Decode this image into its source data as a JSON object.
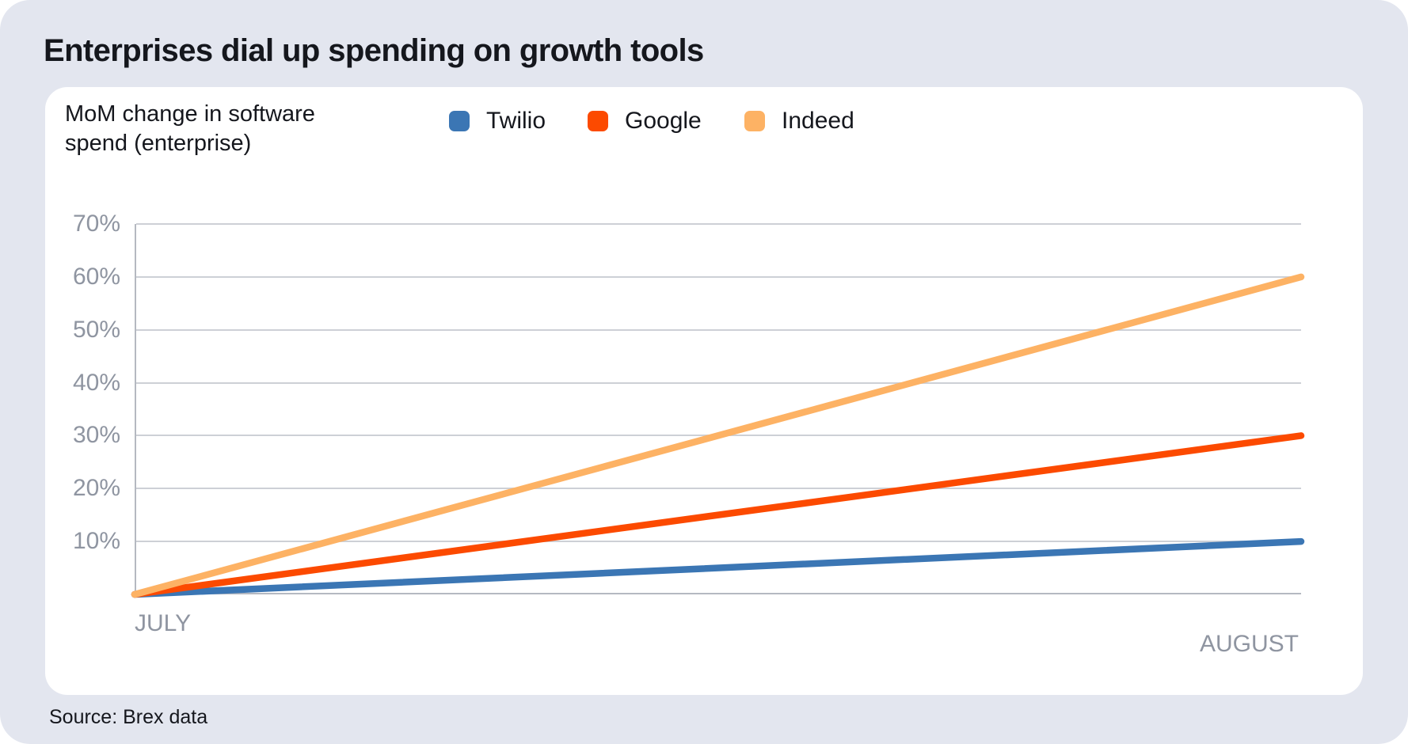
{
  "page": {
    "title": "Enterprises dial up spending on growth tools",
    "source": "Source: Brex data",
    "background_color": "#E3E6EF",
    "card_color": "#FFFFFF"
  },
  "chart_data": {
    "type": "line",
    "title": "MoM change in software spend (enterprise)",
    "subtitle_lines": [
      "MoM change in software",
      "spend (enterprise)"
    ],
    "categories": [
      "JULY",
      "AUGUST"
    ],
    "series": [
      {
        "name": "Twilio",
        "values": [
          0,
          10
        ],
        "color": "#3B76B4"
      },
      {
        "name": "Google",
        "values": [
          0,
          30
        ],
        "color": "#FC4A00"
      },
      {
        "name": "Indeed",
        "values": [
          0,
          60
        ],
        "color": "#FDB264"
      }
    ],
    "unit": "%",
    "ylim": [
      0,
      70
    ],
    "yticks": [
      "70%",
      "60%",
      "50%",
      "40%",
      "30%",
      "20%",
      "10%"
    ],
    "grid": true,
    "legend_position": "top",
    "axis_label_color": "#8F95A1",
    "gridline_color": "#CDD0D6",
    "axis_color": "#B5B9C1",
    "line_width": 8.5
  }
}
